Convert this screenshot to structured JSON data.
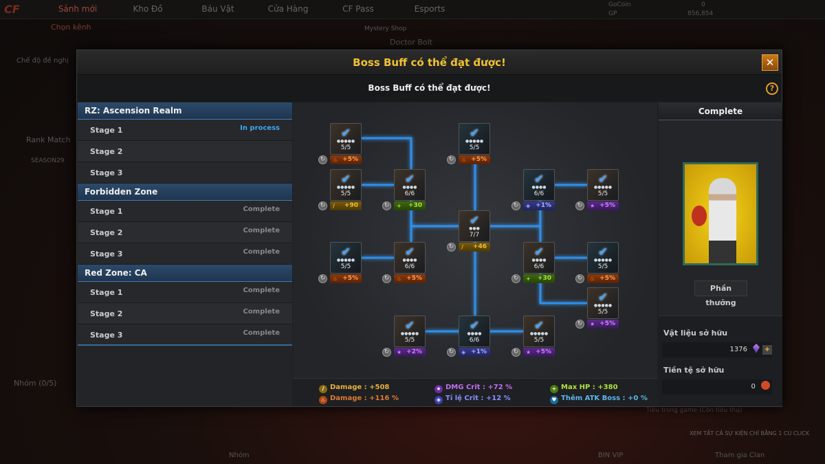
{
  "background": {
    "nav_tabs": [
      "Sảnh mới",
      "Kho Đồ",
      "Báu Vật",
      "Cửa Hàng",
      "CF Pass",
      "Esports"
    ],
    "channel": "Chọn kênh",
    "mystery_shop": "Mystery Shop",
    "doctor_bolt": "Doctor Bolt",
    "gocoin_label": "GoCoin",
    "gocoin_value": "0",
    "gp_label": "GP",
    "gp_value": "856,854",
    "suggested_mode": "Chế độ đề nghị",
    "rank_match": "Rank Match",
    "season": "SEASON29",
    "group": "Nhóm (0/5)",
    "group_bottom": "Nhóm",
    "bin_vip": "BIN VIP",
    "join_clan": "Tham gia Clan",
    "events_banner": "XEM TẤT CẢ SỰ KIỆN CHỈ BẰNG 1 CÚ CLICK",
    "in_game_text": "Tiêu trong game (Còn tiêu thụ)"
  },
  "modal": {
    "title": "Boss Buff có thể đạt được!",
    "subtitle": "Boss Buff có thể đạt được!",
    "close_label": "✕",
    "help_label": "?"
  },
  "zones": [
    {
      "name": "RZ: Ascension Realm",
      "stages": [
        {
          "label": "Stage 1",
          "status": "In process"
        },
        {
          "label": "Stage 2",
          "status": ""
        },
        {
          "label": "Stage 3",
          "status": ""
        }
      ]
    },
    {
      "name": "Forbidden Zone",
      "stages": [
        {
          "label": "Stage 1",
          "status": "Complete"
        },
        {
          "label": "Stage 2",
          "status": "Complete"
        },
        {
          "label": "Stage 3",
          "status": "Complete"
        }
      ]
    },
    {
      "name": "Red Zone: CA",
      "stages": [
        {
          "label": "Stage 1",
          "status": "Complete"
        },
        {
          "label": "Stage 2",
          "status": "Complete"
        },
        {
          "label": "Stage 3",
          "status": "Complete"
        }
      ]
    }
  ],
  "nodes": [
    {
      "count": "5/5",
      "stars": 5,
      "buff": "+5%",
      "type": "fire"
    },
    {
      "count": "5/5",
      "stars": 5,
      "buff": "+5%",
      "type": "fire"
    },
    {
      "count": "5/5",
      "stars": 5,
      "buff": "+90",
      "type": "dmg"
    },
    {
      "count": "6/6",
      "stars": 4,
      "buff": "+30",
      "type": "hp"
    },
    {
      "count": "6/6",
      "stars": 4,
      "buff": "+1%",
      "type": "rate"
    },
    {
      "count": "5/5",
      "stars": 5,
      "buff": "+5%",
      "type": "crit"
    },
    {
      "count": "7/7",
      "stars": 3,
      "buff": "+46",
      "type": "dmg"
    },
    {
      "count": "5/5",
      "stars": 5,
      "buff": "+5%",
      "type": "fire"
    },
    {
      "count": "6/6",
      "stars": 4,
      "buff": "+5%",
      "type": "fire"
    },
    {
      "count": "6/6",
      "stars": 4,
      "buff": "+30",
      "type": "hp"
    },
    {
      "count": "5/5",
      "stars": 5,
      "buff": "+5%",
      "type": "fire"
    },
    {
      "count": "5/5",
      "stars": 5,
      "buff": "+5%",
      "type": "crit"
    },
    {
      "count": "5/5",
      "stars": 5,
      "buff": "+2%",
      "type": "crit"
    },
    {
      "count": "6/6",
      "stars": 4,
      "buff": "+1%",
      "type": "rate"
    },
    {
      "count": "5/5",
      "stars": 5,
      "buff": "+5%",
      "type": "crit"
    }
  ],
  "stats": [
    {
      "text": "Damage : +508",
      "color": "#e8b040",
      "icon": "sword-icon",
      "iconbg": "#8a6a10"
    },
    {
      "text": "Damage : +116 %",
      "color": "#e07a30",
      "icon": "fire-icon",
      "iconbg": "#b0460e"
    },
    {
      "text": "DMG Crit : +72 %",
      "color": "#c070f0",
      "icon": "star-burst-icon",
      "iconbg": "#6a2aa0"
    },
    {
      "text": "Tỉ lệ Crit : +12 %",
      "color": "#8a90ff",
      "icon": "target-icon",
      "iconbg": "#3a40b0"
    },
    {
      "text": "Max HP : +380",
      "color": "#b0e040",
      "icon": "plus-icon",
      "iconbg": "#4a7a10"
    },
    {
      "text": "Thêm ATK Boss : +0 %",
      "color": "#5ab8e8",
      "icon": "boss-icon",
      "iconbg": "#1a6a9a"
    }
  ],
  "right": {
    "status": "Complete",
    "reward_button": "Phần thưởng",
    "materials_label": "Vật liệu sở hữu",
    "materials_value": "1376",
    "currency_label": "Tiền tệ sở hữu",
    "currency_value": "0"
  }
}
